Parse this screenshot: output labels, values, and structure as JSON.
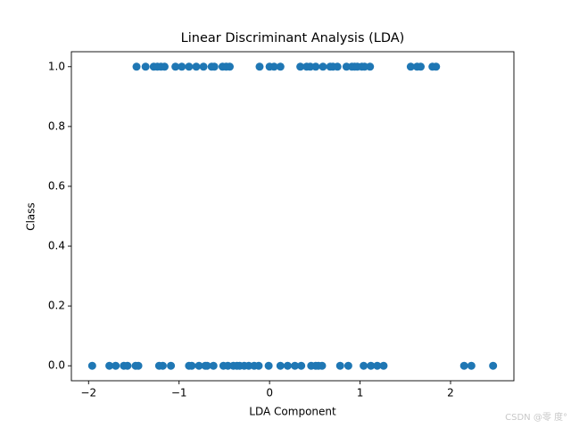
{
  "chart_data": {
    "type": "scatter",
    "title": "Linear Discriminant Analysis (LDA)",
    "x_label": "LDA Component",
    "y_label": "Class",
    "color": "#1f77b4",
    "x": [
      -1.47,
      -1.37,
      -1.28,
      -1.24,
      -1.2,
      -1.16,
      -1.04,
      -0.97,
      -0.89,
      -0.81,
      -0.73,
      -0.64,
      -0.61,
      -0.52,
      -0.48,
      -0.44,
      -0.11,
      0.0,
      0.05,
      0.12,
      0.34,
      0.41,
      0.45,
      0.51,
      0.59,
      0.67,
      0.7,
      0.75,
      0.85,
      0.91,
      0.94,
      0.97,
      1.02,
      1.05,
      1.11,
      1.56,
      1.63,
      1.67,
      1.8,
      1.84,
      -1.96,
      -1.77,
      -1.7,
      -1.61,
      -1.57,
      -1.48,
      -1.45,
      -1.22,
      -1.18,
      -1.09,
      -0.89,
      -0.86,
      -0.78,
      -0.71,
      -0.69,
      -0.62,
      -0.51,
      -0.46,
      -0.4,
      -0.36,
      -0.33,
      -0.28,
      -0.23,
      -0.17,
      -0.12,
      -0.01,
      0.12,
      0.2,
      0.28,
      0.35,
      0.46,
      0.51,
      0.54,
      0.58,
      0.78,
      0.87,
      1.04,
      1.12,
      1.19,
      1.26,
      2.15,
      2.23,
      2.47
    ],
    "values": [
      1,
      1,
      1,
      1,
      1,
      1,
      1,
      1,
      1,
      1,
      1,
      1,
      1,
      1,
      1,
      1,
      1,
      1,
      1,
      1,
      1,
      1,
      1,
      1,
      1,
      1,
      1,
      1,
      1,
      1,
      1,
      1,
      1,
      1,
      1,
      1,
      1,
      1,
      1,
      1,
      0,
      0,
      0,
      0,
      0,
      0,
      0,
      0,
      0,
      0,
      0,
      0,
      0,
      0,
      0,
      0,
      0,
      0,
      0,
      0,
      0,
      0,
      0,
      0,
      0,
      0,
      0,
      0,
      0,
      0,
      0,
      0,
      0,
      0,
      0,
      0,
      0,
      0,
      0,
      0,
      0,
      0,
      0
    ],
    "xlim": [
      -2.19,
      2.7
    ],
    "ylim": [
      -0.05,
      1.05
    ],
    "xticks": [
      {
        "value": -2,
        "label": "−2"
      },
      {
        "value": -1,
        "label": "−1"
      },
      0,
      1,
      2
    ],
    "yticks": [
      {
        "value": 0,
        "label": "0.0"
      },
      {
        "value": 0.2,
        "label": "0.2"
      },
      {
        "value": 0.4,
        "label": "0.4"
      },
      {
        "value": 0.6,
        "label": "0.6"
      },
      {
        "value": 0.8,
        "label": "0.8"
      },
      {
        "value": 1,
        "label": "1.0"
      }
    ]
  },
  "watermark": "CSDN @零 度°"
}
